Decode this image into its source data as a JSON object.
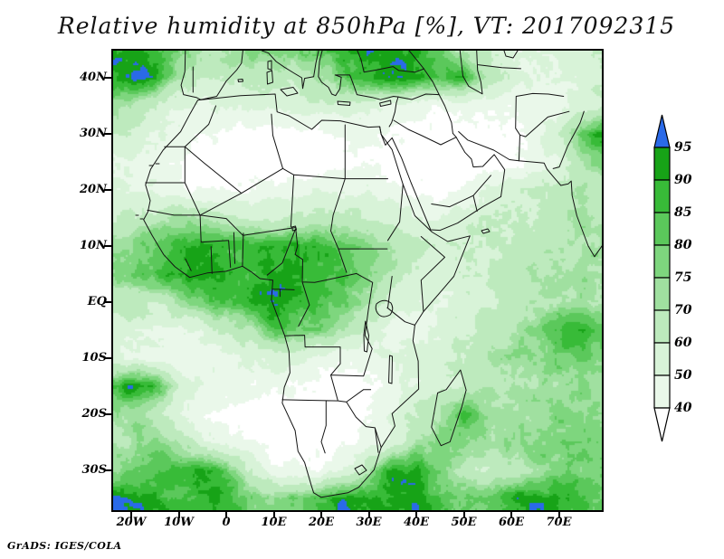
{
  "title": "Relative humidity at 850hPa [%], VT: 2017092315",
  "credit": "GrADS: IGES/COLA",
  "chart_data": {
    "type": "heatmap",
    "title": "Relative humidity at 850hPa [%], VT: 2017092315",
    "variable": "Relative humidity at 850hPa",
    "units": "%",
    "valid_time": "2017092315",
    "region": "Africa, Middle East, western Indian Ocean",
    "lat_tick_labels": [
      "40N",
      "30N",
      "20N",
      "10N",
      "EQ",
      "10S",
      "20S",
      "30S"
    ],
    "lon_tick_labels": [
      "20W",
      "10W",
      "0",
      "10E",
      "20E",
      "30E",
      "40E",
      "50E",
      "60E",
      "70E"
    ],
    "lon_range": [
      -24,
      79.5
    ],
    "lat_range": [
      -37.5,
      44.8
    ],
    "grid_on": false,
    "legend_position": "right colorbar",
    "colorbar": {
      "labels": [
        95,
        90,
        85,
        80,
        75,
        70,
        60,
        50,
        40
      ],
      "levels": [
        40,
        50,
        60,
        70,
        75,
        80,
        85,
        90,
        95
      ],
      "band_colors_low_to_high": [
        "#ffffff",
        "#eaf8ea",
        "#d8f3d8",
        "#bdeabd",
        "#a0e0a0",
        "#7ed67e",
        "#5bc85b",
        "#38bb38",
        "#17a317"
      ],
      "over_color": "#2a6ae8",
      "under_color": "#ffffff"
    },
    "grid": {
      "lons": [
        -25,
        -20,
        -15,
        -10,
        -5,
        0,
        5,
        10,
        15,
        20,
        25,
        30,
        35,
        40,
        45,
        50,
        55,
        60,
        65,
        70,
        75,
        80
      ],
      "lats": [
        45,
        40,
        35,
        30,
        25,
        20,
        15,
        10,
        5,
        0,
        -5,
        -10,
        -15,
        -20,
        -25,
        -30,
        -35
      ],
      "rh_values": [
        [
          96,
          93,
          86,
          78,
          72,
          74,
          78,
          80,
          76,
          82,
          88,
          92,
          95,
          90,
          80,
          68,
          58,
          52,
          50,
          55,
          60,
          62
        ],
        [
          90,
          96,
          92,
          70,
          58,
          60,
          64,
          62,
          66,
          72,
          82,
          88,
          95,
          92,
          85,
          90,
          70,
          55,
          48,
          50,
          55,
          60
        ],
        [
          75,
          70,
          60,
          52,
          48,
          50,
          54,
          52,
          54,
          56,
          58,
          54,
          50,
          46,
          42,
          44,
          42,
          40,
          42,
          46,
          55,
          60
        ],
        [
          62,
          58,
          50,
          44,
          40,
          37,
          35,
          34,
          34,
          37,
          42,
          45,
          40,
          36,
          34,
          34,
          36,
          38,
          45,
          60,
          85,
          95
        ],
        [
          52,
          48,
          44,
          40,
          34,
          31,
          30,
          30,
          30,
          32,
          36,
          38,
          36,
          33,
          32,
          32,
          34,
          36,
          42,
          52,
          70,
          80
        ],
        [
          56,
          50,
          46,
          44,
          41,
          40,
          42,
          44,
          46,
          48,
          50,
          48,
          44,
          38,
          36,
          42,
          50,
          55,
          60,
          64,
          70,
          66
        ],
        [
          58,
          62,
          66,
          70,
          68,
          65,
          62,
          60,
          62,
          64,
          62,
          58,
          56,
          52,
          50,
          54,
          58,
          60,
          62,
          66,
          70,
          68
        ],
        [
          72,
          75,
          82,
          88,
          90,
          88,
          86,
          88,
          90,
          87,
          84,
          78,
          70,
          62,
          55,
          58,
          60,
          62,
          65,
          68,
          72,
          70
        ],
        [
          74,
          78,
          85,
          92,
          95,
          90,
          88,
          91,
          93,
          88,
          84,
          76,
          66,
          58,
          55,
          58,
          62,
          65,
          68,
          70,
          72,
          72
        ],
        [
          66,
          64,
          62,
          70,
          80,
          86,
          90,
          95,
          88,
          84,
          79,
          70,
          54,
          48,
          50,
          55,
          60,
          64,
          68,
          70,
          72,
          70
        ],
        [
          58,
          54,
          50,
          48,
          52,
          60,
          70,
          85,
          80,
          77,
          70,
          57,
          48,
          45,
          52,
          60,
          65,
          70,
          75,
          88,
          92,
          82
        ],
        [
          52,
          50,
          45,
          42,
          44,
          48,
          50,
          55,
          52,
          48,
          44,
          45,
          48,
          52,
          58,
          62,
          68,
          72,
          76,
          80,
          80,
          75
        ],
        [
          85,
          95,
          88,
          60,
          48,
          45,
          44,
          42,
          40,
          36,
          35,
          38,
          45,
          52,
          58,
          62,
          68,
          70,
          70,
          72,
          75,
          74
        ],
        [
          70,
          75,
          65,
          50,
          42,
          38,
          34,
          30,
          30,
          32,
          36,
          42,
          50,
          60,
          72,
          88,
          74,
          72,
          74,
          76,
          78,
          74
        ],
        [
          65,
          72,
          78,
          68,
          55,
          45,
          40,
          35,
          32,
          34,
          38,
          45,
          55,
          70,
          78,
          74,
          72,
          74,
          78,
          80,
          80,
          76
        ],
        [
          75,
          80,
          85,
          88,
          95,
          85,
          60,
          45,
          40,
          42,
          50,
          70,
          95,
          90,
          75,
          65,
          60,
          65,
          72,
          75,
          78,
          78
        ],
        [
          96,
          94,
          90,
          85,
          90,
          88,
          80,
          75,
          80,
          88,
          95,
          92,
          90,
          95,
          85,
          80,
          82,
          90,
          95,
          92,
          85,
          82
        ]
      ]
    }
  }
}
